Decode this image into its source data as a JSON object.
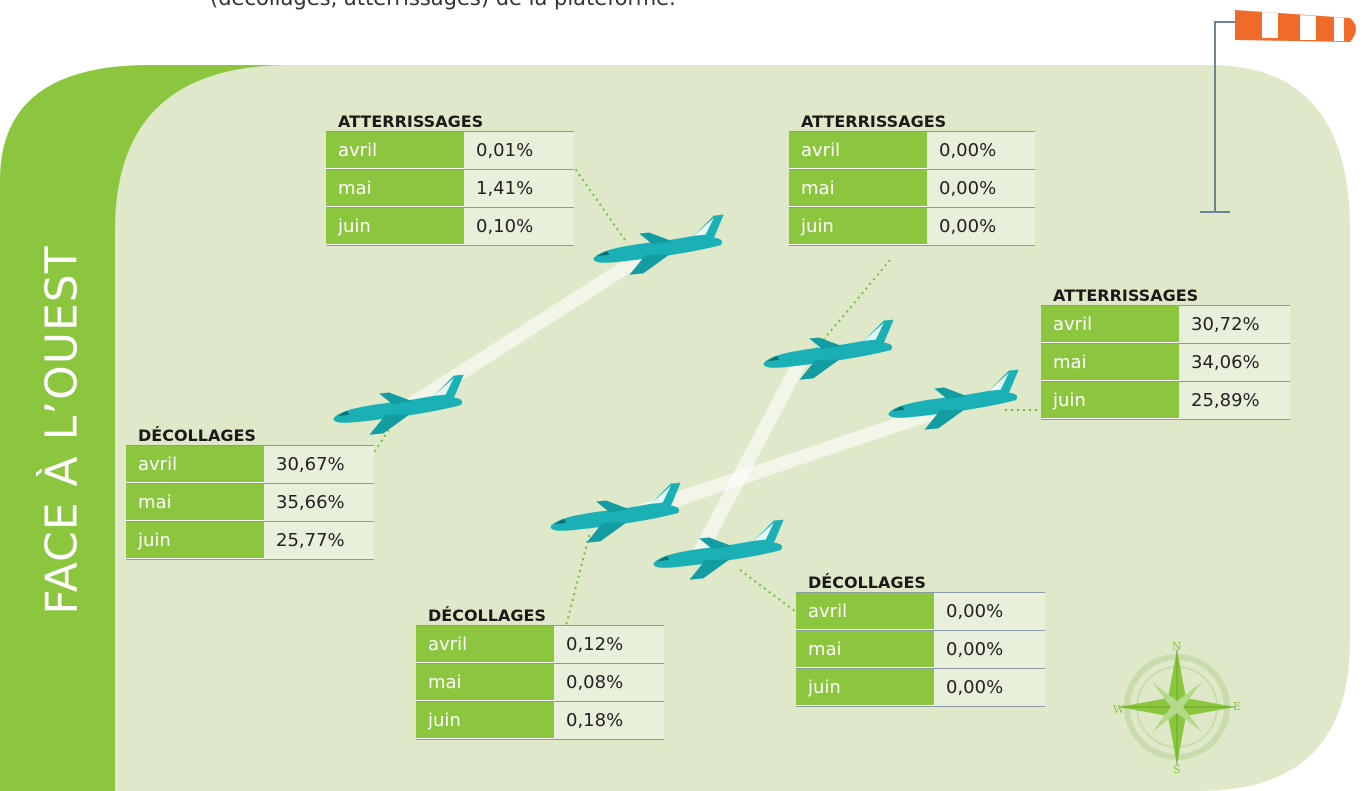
{
  "header": {
    "intro": "(décollages, atterrissages) de la plateforme."
  },
  "side_label": "FACE À L’OUEST",
  "tables": [
    {
      "title": "ATTERRISSAGES",
      "rows": [
        [
          "avril",
          "0,01%"
        ],
        [
          "mai",
          "1,41%"
        ],
        [
          "juin",
          "0,10%"
        ]
      ]
    },
    {
      "title": "ATTERRISSAGES",
      "rows": [
        [
          "avril",
          "0,00%"
        ],
        [
          "mai",
          "0,00%"
        ],
        [
          "juin",
          "0,00%"
        ]
      ]
    },
    {
      "title": "ATTERRISSAGES",
      "rows": [
        [
          "avril",
          "30,72%"
        ],
        [
          "mai",
          "34,06%"
        ],
        [
          "juin",
          "25,89%"
        ]
      ]
    },
    {
      "title": "DÉCOLLAGES",
      "rows": [
        [
          "avril",
          "30,67%"
        ],
        [
          "mai",
          "35,66%"
        ],
        [
          "juin",
          "25,77%"
        ]
      ]
    },
    {
      "title": "DÉCOLLAGES",
      "rows": [
        [
          "avril",
          "0,12%"
        ],
        [
          "mai",
          "0,08%"
        ],
        [
          "juin",
          "0,18%"
        ]
      ]
    },
    {
      "title": "DÉCOLLAGES",
      "rows": [
        [
          "avril",
          "0,00%"
        ],
        [
          "mai",
          "0,00%"
        ],
        [
          "juin",
          "0,00%"
        ]
      ]
    }
  ],
  "compass": {
    "n": "N",
    "e": "E",
    "s": "S",
    "w": "W"
  }
}
